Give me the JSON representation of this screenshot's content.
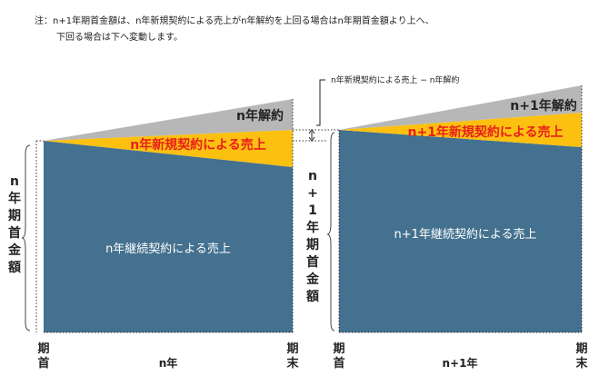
{
  "note": {
    "line1": "注：n+1年期首金額は、n年新規契約による売上がn年解約を上回る場合はn年期首金額より上へ、",
    "line2": "下回る場合は下へ変動します。"
  },
  "diff_label": "n年新規契約による売上 − n年解約",
  "left_panel": {
    "churn_label": "n年解約",
    "new_label": "n年新規契約による売上",
    "base_label": "n年継続契約による売上",
    "vertical_label": "n年期首金額",
    "x_start": "期首",
    "x_mid": "n年",
    "x_end": "期末"
  },
  "right_panel": {
    "churn_label": "n+1年解約",
    "new_label": "n+1年新規契約による売上",
    "base_label": "n+1年継続契約による売上",
    "vertical_label": "n+1年期首金額",
    "x_start": "期首",
    "x_mid": "n+1年",
    "x_end": "期末"
  },
  "colors": {
    "base": "#44718f",
    "new": "#fcc010",
    "churn": "#b7b7b7",
    "new_text": "#e8201a"
  }
}
